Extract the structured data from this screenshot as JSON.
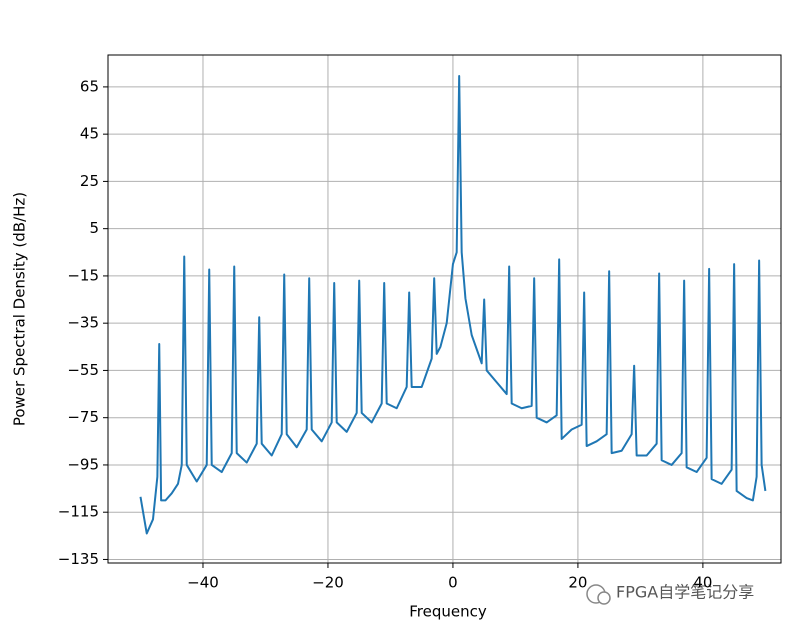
{
  "chart_data": {
    "type": "line",
    "xlabel": "Frequency",
    "ylabel": "Power Spectral Density (dB/Hz)",
    "watermark": "FPGA自学笔记分享",
    "color": "#1f77b4",
    "grid": true,
    "xlim": [
      -55.2,
      52.5
    ],
    "ylim": [
      -136.5,
      78.5
    ],
    "xticks": [
      {
        "value": -40,
        "label": "−40"
      },
      {
        "value": -20,
        "label": "−20"
      },
      0,
      20,
      40
    ],
    "yticks": [
      65,
      45,
      25,
      5,
      {
        "value": -15,
        "label": "−15"
      },
      {
        "value": -35,
        "label": "−35"
      },
      {
        "value": -55,
        "label": "−55"
      },
      {
        "value": -75,
        "label": "−75"
      },
      {
        "value": -95,
        "label": "−95"
      },
      {
        "value": -115,
        "label": "−115"
      },
      {
        "value": -135,
        "label": "−135"
      }
    ],
    "x": [
      -50,
      -49,
      -48,
      -47.3,
      -47,
      -46.7,
      -46,
      -45,
      -44,
      -43.4,
      -43,
      -42.6,
      -41,
      -39.4,
      -39,
      -38.6,
      -37,
      -35.4,
      -35,
      -34.6,
      -33,
      -31.4,
      -31,
      -30.6,
      -29,
      -27.4,
      -27,
      -26.6,
      -25,
      -23.4,
      -23,
      -22.6,
      -21,
      -19.4,
      -19,
      -18.6,
      -17,
      -15.4,
      -15,
      -14.6,
      -13,
      -11.4,
      -11,
      -10.6,
      -9,
      -7.4,
      -7,
      -6.6,
      -5,
      -3.4,
      -3,
      -2.6,
      -2,
      -1,
      0,
      0.6,
      1,
      1.4,
      2,
      3,
      4.6,
      5,
      5.4,
      7,
      8.6,
      9,
      9.4,
      11,
      12.6,
      13,
      13.4,
      15,
      16.6,
      17,
      17.4,
      19,
      20.6,
      21,
      21.4,
      23,
      24.6,
      25,
      25.4,
      27,
      28.6,
      29,
      29.4,
      31,
      32.6,
      33,
      33.4,
      35,
      36.6,
      37,
      37.4,
      39,
      40.6,
      41,
      41.4,
      43,
      44.6,
      45,
      45.4,
      47,
      48,
      48.6,
      49,
      49.4,
      50
    ],
    "values": [
      -108.5,
      -124,
      -118,
      -100,
      -43.8,
      -110,
      -110,
      -107,
      -103,
      -95,
      -6.8,
      -95,
      -102,
      -95,
      -12.3,
      -95,
      -98,
      -90,
      -11,
      -90,
      -94,
      -86,
      -32.5,
      -86,
      -91,
      -82,
      -14.4,
      -82,
      -87.5,
      -80,
      -16,
      -80,
      -85,
      -77,
      -18,
      -77,
      -81,
      -73,
      -17,
      -73,
      -77,
      -69,
      -18,
      -69,
      -71,
      -62,
      -22,
      -62,
      -62,
      -50,
      -16,
      -48,
      -45,
      -35,
      -10,
      -5,
      69.6,
      -5,
      -24.5,
      -40,
      -52,
      -25,
      -55,
      -60,
      -65,
      -11,
      -69,
      -71,
      -70,
      -16,
      -75,
      -77,
      -74,
      -8,
      -84,
      -80,
      -78,
      -22,
      -87,
      -85,
      -82,
      -13,
      -90,
      -89,
      -82,
      -53,
      -91,
      -91,
      -86,
      -14,
      -93,
      -95,
      -90,
      -17,
      -96,
      -98,
      -92,
      -12,
      -101,
      -103,
      -97,
      -10,
      -106,
      -109,
      -110,
      -100,
      -8.5,
      -95,
      -106
    ]
  }
}
